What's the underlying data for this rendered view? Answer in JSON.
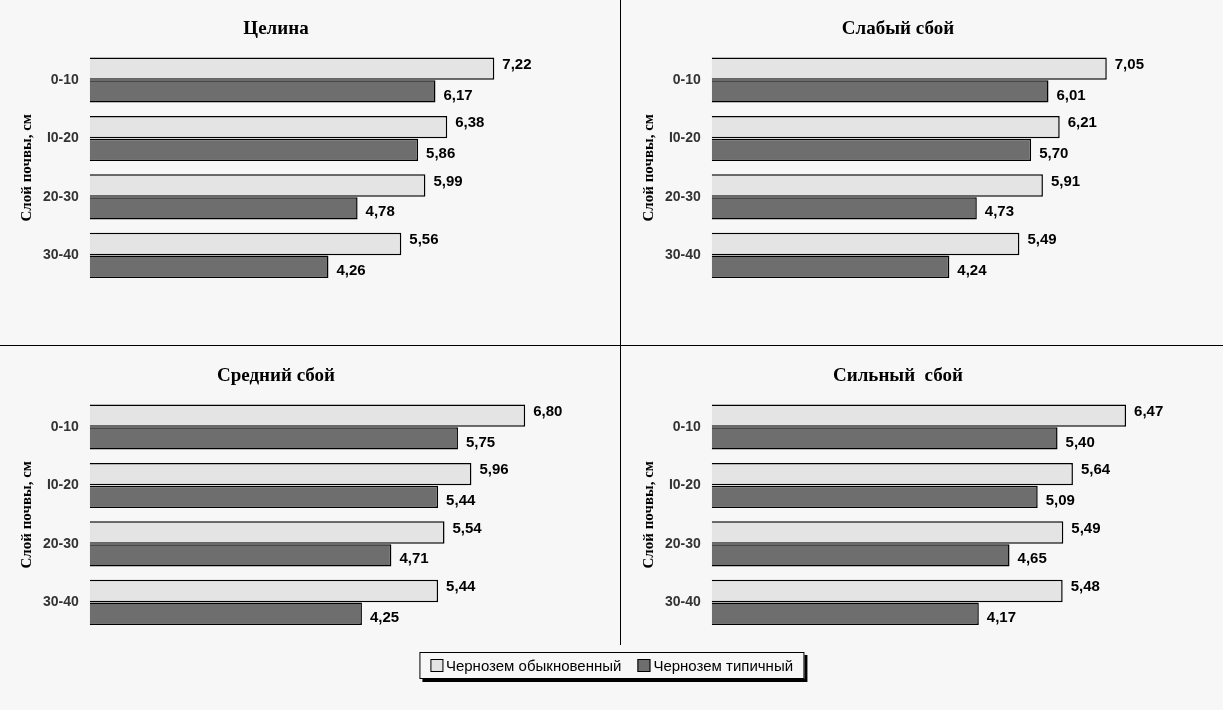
{
  "chart_data": [
    {
      "type": "bar",
      "orientation": "horizontal",
      "title": "Целина",
      "ylabel": "Слой почвы, см",
      "categories": [
        "0-10",
        "I0-20",
        "20-30",
        "30-40"
      ],
      "series": [
        {
          "color": "#e4e4e4",
          "values": [
            7.22,
            6.38,
            5.99,
            5.56
          ],
          "value_labels": [
            "7,22",
            "6,38",
            "5,99",
            "5,56"
          ]
        },
        {
          "color": "#6e6e6e",
          "values": [
            6.17,
            5.86,
            4.78,
            4.26
          ],
          "value_labels": [
            "6,17",
            "5,86",
            "4,78",
            "4,26"
          ]
        }
      ]
    },
    {
      "type": "bar",
      "orientation": "horizontal",
      "title": "Слабый сбой",
      "ylabel": "Слой почвы, см",
      "categories": [
        "0-10",
        "I0-20",
        "20-30",
        "30-40"
      ],
      "series": [
        {
          "color": "#e4e4e4",
          "values": [
            7.05,
            6.21,
            5.91,
            5.49
          ],
          "value_labels": [
            "7,05",
            "6,21",
            "5,91",
            "5,49"
          ]
        },
        {
          "color": "#6e6e6e",
          "values": [
            6.01,
            5.7,
            4.73,
            4.24
          ],
          "value_labels": [
            "6,01",
            "5,70",
            "4,73",
            "4,24"
          ]
        }
      ]
    },
    {
      "type": "bar",
      "orientation": "horizontal",
      "title": "Средний сбой",
      "ylabel": "Слой почвы, см",
      "categories": [
        "0-10",
        "I0-20",
        "20-30",
        "30-40"
      ],
      "series": [
        {
          "color": "#e4e4e4",
          "values": [
            6.8,
            5.96,
            5.54,
            5.44
          ],
          "value_labels": [
            "6,80",
            "5,96",
            "5,54",
            "5,44"
          ]
        },
        {
          "color": "#6e6e6e",
          "values": [
            5.75,
            5.44,
            4.71,
            4.25
          ],
          "value_labels": [
            "5,75",
            "5,44",
            "4,71",
            "4,25"
          ]
        }
      ]
    },
    {
      "type": "bar",
      "orientation": "horizontal",
      "title": "Сильный  сбой",
      "ylabel": "Слой почвы, см",
      "categories": [
        "0-10",
        "I0-20",
        "20-30",
        "30-40"
      ],
      "series": [
        {
          "name": "Чернозем обыкновенный",
          "color": "#e4e4e4",
          "values": [
            6.47,
            5.64,
            5.49,
            5.48
          ],
          "value_labels": [
            "6,47",
            "5,64",
            "5,49",
            "5,48"
          ]
        },
        {
          "name": "Чернозем типичный",
          "color": "#6e6e6e",
          "values": [
            5.4,
            5.09,
            4.65,
            4.17
          ],
          "value_labels": [
            "5,40",
            "5,09",
            "4,65",
            "4,17"
          ]
        }
      ],
      "legend": "bottom"
    }
  ]
}
